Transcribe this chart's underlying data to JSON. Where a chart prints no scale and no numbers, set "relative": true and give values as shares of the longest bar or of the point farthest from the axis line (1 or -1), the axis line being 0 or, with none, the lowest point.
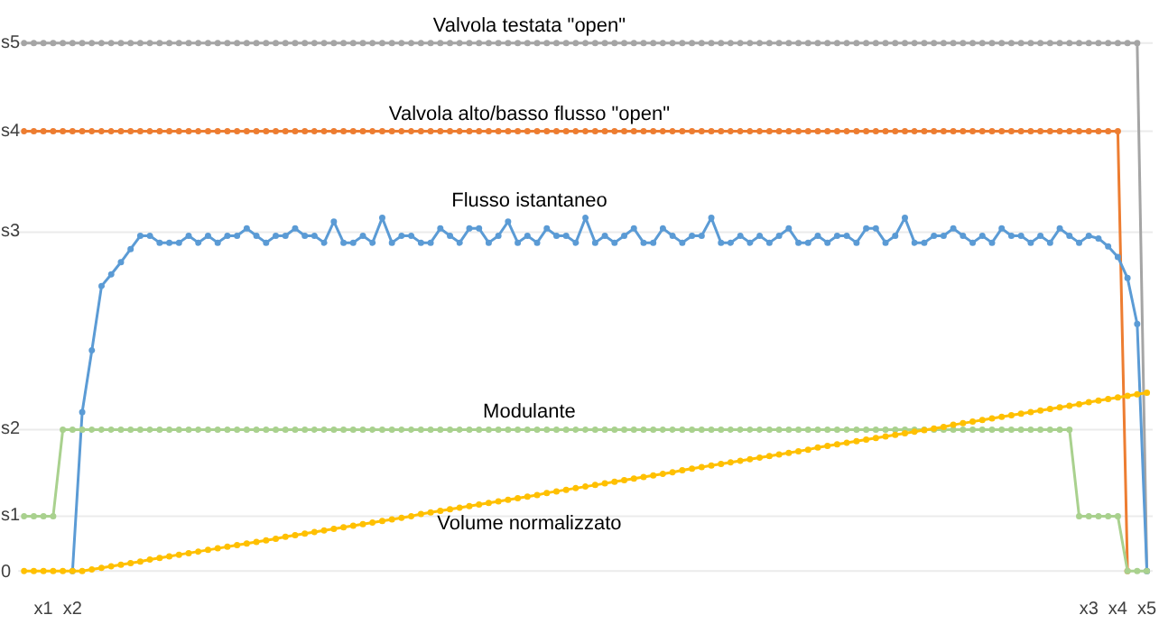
{
  "chart_data": {
    "type": "line",
    "relative": true,
    "marker": "circle",
    "grid": false,
    "legend": false,
    "categories": [
      null,
      null,
      "x1",
      null,
      null,
      "x2",
      null,
      null,
      null,
      null,
      null,
      null,
      null,
      null,
      null,
      null,
      null,
      null,
      null,
      null,
      null,
      null,
      null,
      null,
      null,
      null,
      null,
      null,
      null,
      null,
      null,
      null,
      null,
      null,
      null,
      null,
      null,
      null,
      null,
      null,
      null,
      null,
      null,
      null,
      null,
      null,
      null,
      null,
      null,
      null,
      null,
      null,
      null,
      null,
      null,
      null,
      null,
      null,
      null,
      null,
      null,
      null,
      null,
      null,
      null,
      null,
      null,
      null,
      null,
      null,
      null,
      null,
      null,
      null,
      null,
      null,
      null,
      null,
      null,
      null,
      null,
      null,
      null,
      null,
      null,
      null,
      null,
      null,
      null,
      null,
      null,
      null,
      null,
      null,
      null,
      null,
      null,
      null,
      null,
      null,
      null,
      null,
      null,
      null,
      null,
      null,
      null,
      null,
      null,
      null,
      "x3",
      null,
      null,
      "x4",
      null,
      null,
      "x5"
    ],
    "series": [
      {
        "name": "Valvola testata \"open\"",
        "color": "#a5a5a5",
        "values": [
          1,
          1,
          1,
          1,
          1,
          1,
          1,
          1,
          1,
          1,
          1,
          1,
          1,
          1,
          1,
          1,
          1,
          1,
          1,
          1,
          1,
          1,
          1,
          1,
          1,
          1,
          1,
          1,
          1,
          1,
          1,
          1,
          1,
          1,
          1,
          1,
          1,
          1,
          1,
          1,
          1,
          1,
          1,
          1,
          1,
          1,
          1,
          1,
          1,
          1,
          1,
          1,
          1,
          1,
          1,
          1,
          1,
          1,
          1,
          1,
          1,
          1,
          1,
          1,
          1,
          1,
          1,
          1,
          1,
          1,
          1,
          1,
          1,
          1,
          1,
          1,
          1,
          1,
          1,
          1,
          1,
          1,
          1,
          1,
          1,
          1,
          1,
          1,
          1,
          1,
          1,
          1,
          1,
          1,
          1,
          1,
          1,
          1,
          1,
          1,
          1,
          1,
          1,
          1,
          1,
          1,
          1,
          1,
          1,
          1,
          1,
          1,
          1,
          1,
          1,
          1,
          0
        ]
      },
      {
        "name": "Valvola alto/basso flusso \"open\"",
        "color": "#ed7d31",
        "values": [
          0.833,
          0.833,
          0.833,
          0.833,
          0.833,
          0.833,
          0.833,
          0.833,
          0.833,
          0.833,
          0.833,
          0.833,
          0.833,
          0.833,
          0.833,
          0.833,
          0.833,
          0.833,
          0.833,
          0.833,
          0.833,
          0.833,
          0.833,
          0.833,
          0.833,
          0.833,
          0.833,
          0.833,
          0.833,
          0.833,
          0.833,
          0.833,
          0.833,
          0.833,
          0.833,
          0.833,
          0.833,
          0.833,
          0.833,
          0.833,
          0.833,
          0.833,
          0.833,
          0.833,
          0.833,
          0.833,
          0.833,
          0.833,
          0.833,
          0.833,
          0.833,
          0.833,
          0.833,
          0.833,
          0.833,
          0.833,
          0.833,
          0.833,
          0.833,
          0.833,
          0.833,
          0.833,
          0.833,
          0.833,
          0.833,
          0.833,
          0.833,
          0.833,
          0.833,
          0.833,
          0.833,
          0.833,
          0.833,
          0.833,
          0.833,
          0.833,
          0.833,
          0.833,
          0.833,
          0.833,
          0.833,
          0.833,
          0.833,
          0.833,
          0.833,
          0.833,
          0.833,
          0.833,
          0.833,
          0.833,
          0.833,
          0.833,
          0.833,
          0.833,
          0.833,
          0.833,
          0.833,
          0.833,
          0.833,
          0.833,
          0.833,
          0.833,
          0.833,
          0.833,
          0.833,
          0.833,
          0.833,
          0.833,
          0.833,
          0.833,
          0.833,
          0.833,
          0.833,
          0.833,
          0,
          null,
          null
        ]
      },
      {
        "name": "Flusso istantaneo",
        "color": "#5b9bd5",
        "values": [
          null,
          null,
          null,
          null,
          null,
          0,
          0.301,
          0.418,
          0.54,
          0.562,
          0.585,
          0.61,
          0.635,
          0.635,
          0.622,
          0.622,
          0.622,
          0.635,
          0.622,
          0.635,
          0.622,
          0.635,
          0.635,
          0.649,
          0.635,
          0.622,
          0.635,
          0.635,
          0.649,
          0.635,
          0.635,
          0.622,
          0.662,
          0.622,
          0.622,
          0.635,
          0.622,
          0.669,
          0.622,
          0.635,
          0.635,
          0.622,
          0.622,
          0.649,
          0.635,
          0.622,
          0.649,
          0.649,
          0.622,
          0.635,
          0.662,
          0.622,
          0.635,
          0.622,
          0.649,
          0.635,
          0.635,
          0.622,
          0.669,
          0.622,
          0.635,
          0.622,
          0.635,
          0.649,
          0.622,
          0.622,
          0.649,
          0.635,
          0.622,
          0.635,
          0.635,
          0.669,
          0.622,
          0.622,
          0.635,
          0.622,
          0.635,
          0.622,
          0.635,
          0.649,
          0.622,
          0.622,
          0.635,
          0.622,
          0.635,
          0.635,
          0.622,
          0.649,
          0.649,
          0.622,
          0.635,
          0.669,
          0.622,
          0.622,
          0.635,
          0.635,
          0.649,
          0.635,
          0.622,
          0.635,
          0.622,
          0.649,
          0.635,
          0.635,
          0.622,
          0.635,
          0.622,
          0.649,
          0.635,
          0.622,
          0.635,
          0.63,
          0.615,
          0.595,
          0.555,
          0.468,
          0
        ]
      },
      {
        "name": "Modulante",
        "color": "#a9d18e",
        "values": [
          0.104,
          0.104,
          0.104,
          0.104,
          0.268,
          0.268,
          0.268,
          0.268,
          0.268,
          0.268,
          0.268,
          0.268,
          0.268,
          0.268,
          0.268,
          0.268,
          0.268,
          0.268,
          0.268,
          0.268,
          0.268,
          0.268,
          0.268,
          0.268,
          0.268,
          0.268,
          0.268,
          0.268,
          0.268,
          0.268,
          0.268,
          0.268,
          0.268,
          0.268,
          0.268,
          0.268,
          0.268,
          0.268,
          0.268,
          0.268,
          0.268,
          0.268,
          0.268,
          0.268,
          0.268,
          0.268,
          0.268,
          0.268,
          0.268,
          0.268,
          0.268,
          0.268,
          0.268,
          0.268,
          0.268,
          0.268,
          0.268,
          0.268,
          0.268,
          0.268,
          0.268,
          0.268,
          0.268,
          0.268,
          0.268,
          0.268,
          0.268,
          0.268,
          0.268,
          0.268,
          0.268,
          0.268,
          0.268,
          0.268,
          0.268,
          0.268,
          0.268,
          0.268,
          0.268,
          0.268,
          0.268,
          0.268,
          0.268,
          0.268,
          0.268,
          0.268,
          0.268,
          0.268,
          0.268,
          0.268,
          0.268,
          0.268,
          0.268,
          0.268,
          0.268,
          0.268,
          0.268,
          0.268,
          0.268,
          0.268,
          0.268,
          0.268,
          0.268,
          0.268,
          0.268,
          0.268,
          0.268,
          0.268,
          0.268,
          0.104,
          0.104,
          0.104,
          0.104,
          0.104,
          0,
          0,
          0
        ]
      },
      {
        "name": "Volume normalizzato",
        "color": "#ffc000",
        "values": [
          0,
          0,
          0,
          0,
          0,
          0,
          0,
          0.003,
          0.006,
          0.009,
          0.012,
          0.015,
          0.018,
          0.022,
          0.025,
          0.028,
          0.031,
          0.034,
          0.037,
          0.04,
          0.043,
          0.046,
          0.049,
          0.052,
          0.055,
          0.058,
          0.061,
          0.065,
          0.068,
          0.071,
          0.074,
          0.077,
          0.08,
          0.083,
          0.086,
          0.089,
          0.092,
          0.095,
          0.098,
          0.101,
          0.104,
          0.108,
          0.111,
          0.114,
          0.117,
          0.12,
          0.123,
          0.126,
          0.129,
          0.132,
          0.135,
          0.138,
          0.141,
          0.144,
          0.148,
          0.151,
          0.154,
          0.157,
          0.16,
          0.163,
          0.166,
          0.169,
          0.172,
          0.175,
          0.178,
          0.181,
          0.184,
          0.187,
          0.191,
          0.194,
          0.197,
          0.2,
          0.203,
          0.206,
          0.209,
          0.212,
          0.215,
          0.218,
          0.221,
          0.224,
          0.227,
          0.23,
          0.234,
          0.237,
          0.24,
          0.243,
          0.246,
          0.249,
          0.252,
          0.255,
          0.258,
          0.261,
          0.264,
          0.267,
          0.27,
          0.273,
          0.277,
          0.28,
          0.283,
          0.286,
          0.289,
          0.292,
          0.295,
          0.298,
          0.301,
          0.304,
          0.307,
          0.31,
          0.313,
          0.316,
          0.32,
          0.323,
          0.326,
          0.329,
          0.332,
          0.335,
          0.338
        ]
      }
    ],
    "ref_lines": [
      {
        "axis": "y",
        "value": 0,
        "label": "0",
        "color": "#ebebeb"
      },
      {
        "axis": "y",
        "value": 0.104,
        "label": "s1",
        "color": "#ebebeb"
      },
      {
        "axis": "y",
        "value": 0.268,
        "label": "s2",
        "color": "#ebebeb"
      },
      {
        "axis": "y",
        "value": 0.642,
        "label": "s3",
        "color": "#ebebeb"
      },
      {
        "axis": "y",
        "value": 0.833,
        "label": "s4",
        "color": "#ebebeb"
      },
      {
        "axis": "y",
        "value": 1,
        "label": "s5",
        "color": "#ebebeb"
      }
    ]
  }
}
